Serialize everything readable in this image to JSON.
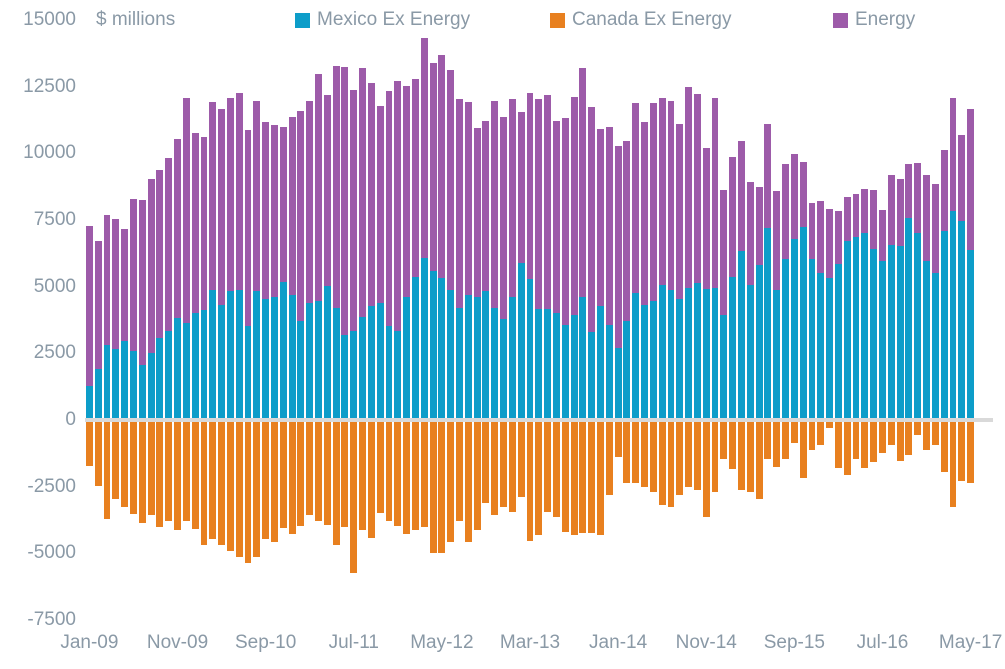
{
  "header": {
    "unit_label": "$ millions"
  },
  "legend": [
    {
      "label": "Mexico Ex Energy",
      "color": "#0d9dc9"
    },
    {
      "label": "Canada Ex Energy",
      "color": "#e8801f"
    },
    {
      "label": "Energy",
      "color": "#9d5ba9"
    }
  ],
  "colors": {
    "mexico": "#0d9dc9",
    "canada": "#e8801f",
    "energy": "#9d5ba9",
    "axis_text": "#8a99a6",
    "zero_line": "#d9d9d9",
    "background": "#ffffff"
  },
  "chart_data": {
    "type": "bar",
    "stacked": true,
    "title": "",
    "ylabel": "$ millions",
    "ylim": [
      -7500,
      15000
    ],
    "grid": false,
    "legend_position": "top",
    "y_ticks": [
      15000,
      12500,
      10000,
      7500,
      5000,
      2500,
      0,
      -2500,
      -5000,
      -7500
    ],
    "x_tick_every": 10,
    "x_tick_labels": [
      "Jan-09",
      "Nov-09",
      "Sep-10",
      "Jul-11",
      "May-12",
      "Mar-13",
      "Jan-14",
      "Nov-14",
      "Sep-15",
      "Jul-16",
      "May-17"
    ],
    "months": [
      "Jan-09",
      "Feb-09",
      "Mar-09",
      "Apr-09",
      "May-09",
      "Jun-09",
      "Jul-09",
      "Aug-09",
      "Sep-09",
      "Oct-09",
      "Nov-09",
      "Dec-09",
      "Jan-10",
      "Feb-10",
      "Mar-10",
      "Apr-10",
      "May-10",
      "Jun-10",
      "Jul-10",
      "Aug-10",
      "Sep-10",
      "Oct-10",
      "Nov-10",
      "Dec-10",
      "Jan-11",
      "Feb-11",
      "Mar-11",
      "Apr-11",
      "May-11",
      "Jun-11",
      "Jul-11",
      "Aug-11",
      "Sep-11",
      "Oct-11",
      "Nov-11",
      "Dec-11",
      "Jan-12",
      "Feb-12",
      "Mar-12",
      "Apr-12",
      "May-12",
      "Jun-12",
      "Jul-12",
      "Aug-12",
      "Sep-12",
      "Oct-12",
      "Nov-12",
      "Dec-12",
      "Jan-13",
      "Feb-13",
      "Mar-13",
      "Apr-13",
      "May-13",
      "Jun-13",
      "Jul-13",
      "Aug-13",
      "Sep-13",
      "Oct-13",
      "Nov-13",
      "Dec-13",
      "Jan-14",
      "Feb-14",
      "Mar-14",
      "Apr-14",
      "May-14",
      "Jun-14",
      "Jul-14",
      "Aug-14",
      "Sep-14",
      "Oct-14",
      "Nov-14",
      "Dec-14",
      "Jan-15",
      "Feb-15",
      "Mar-15",
      "Apr-15",
      "May-15",
      "Jun-15",
      "Jul-15",
      "Aug-15",
      "Sep-15",
      "Oct-15",
      "Nov-15",
      "Dec-15",
      "Jan-16",
      "Feb-16",
      "Mar-16",
      "Apr-16",
      "May-16",
      "Jun-16",
      "Jul-16",
      "Aug-16",
      "Sep-16",
      "Oct-16",
      "Nov-16",
      "Dec-16",
      "Jan-17",
      "Feb-17",
      "Mar-17",
      "Apr-17",
      "May-17"
    ],
    "series": [
      {
        "name": "Mexico Ex Energy",
        "color": "#0d9dc9",
        "values": [
          1200,
          1850,
          2750,
          2600,
          2875,
          2525,
          2000,
          2450,
          3000,
          3275,
          3750,
          3550,
          3950,
          4050,
          4800,
          4250,
          4750,
          4800,
          3450,
          4750,
          4450,
          4550,
          5100,
          4600,
          3625,
          4300,
          4400,
          4950,
          4125,
          3100,
          3275,
          3800,
          4200,
          4300,
          3450,
          3250,
          4525,
          5300,
          6000,
          5500,
          5250,
          4800,
          4125,
          4600,
          4550,
          4750,
          4125,
          3700,
          4550,
          5800,
          5200,
          4100,
          4100,
          3950,
          3500,
          3875,
          4525,
          3225,
          4200,
          3500,
          2625,
          3625,
          4700,
          4225,
          4400,
          5000,
          4800,
          4475,
          4875,
          5050,
          4850,
          4875,
          3875,
          5275,
          6250,
          5000,
          5725,
          7125,
          4800,
          5950,
          6700,
          7150,
          5975,
          5450,
          5250,
          5775,
          6650,
          6775,
          6950,
          6350,
          5900,
          6500,
          6450,
          7500,
          6950,
          5900,
          5450,
          7000,
          7775,
          7400,
          6300
        ]
      },
      {
        "name": "Energy",
        "color": "#9d5ba9",
        "values": [
          6000,
          4800,
          4850,
          4875,
          4200,
          5700,
          6175,
          6500,
          6300,
          6475,
          6700,
          8450,
          6750,
          6500,
          7050,
          7350,
          7250,
          7400,
          7350,
          7150,
          6650,
          6425,
          5800,
          6700,
          7900,
          7575,
          8500,
          7150,
          9075,
          10050,
          9025,
          9325,
          8350,
          7400,
          8825,
          9400,
          7925,
          7400,
          8250,
          7800,
          8350,
          8250,
          7825,
          7250,
          6325,
          6375,
          7775,
          7600,
          7400,
          5675,
          7000,
          7850,
          8000,
          7175,
          7750,
          8175,
          8600,
          8425,
          6650,
          7400,
          7575,
          6750,
          7100,
          6875,
          7400,
          7000,
          7100,
          6550,
          7525,
          7100,
          5275,
          7125,
          4675,
          4525,
          4125,
          3850,
          2925,
          3900,
          3725,
          3575,
          3200,
          2450,
          2075,
          2700,
          2600,
          1975,
          1625,
          1625,
          1650,
          2200,
          1900,
          2625,
          2500,
          2025,
          2600,
          3200,
          3325,
          3050,
          4225,
          3200,
          5300
        ]
      },
      {
        "name": "Canada Ex Energy",
        "color": "#e8801f",
        "values": [
          -1650,
          -2400,
          -3650,
          -2900,
          -3200,
          -3450,
          -3800,
          -3500,
          -3950,
          -3700,
          -4050,
          -3700,
          -4000,
          -4600,
          -4400,
          -4600,
          -4850,
          -5050,
          -5300,
          -5050,
          -4400,
          -4500,
          -3975,
          -4200,
          -3900,
          -3500,
          -3700,
          -3850,
          -4625,
          -3950,
          -5650,
          -4050,
          -4350,
          -3400,
          -3725,
          -3900,
          -4200,
          -4050,
          -3950,
          -4900,
          -4900,
          -4500,
          -3700,
          -4500,
          -4050,
          -3050,
          -3500,
          -3200,
          -3375,
          -2800,
          -4475,
          -4250,
          -3375,
          -3550,
          -4125,
          -4250,
          -4150,
          -4150,
          -4250,
          -2725,
          -1300,
          -2275,
          -2275,
          -2450,
          -2625,
          -3125,
          -3200,
          -2725,
          -2450,
          -2550,
          -3550,
          -2625,
          -1400,
          -1775,
          -2550,
          -2625,
          -2875,
          -1375,
          -1700,
          -1400,
          -775,
          -2100,
          -1050,
          -875,
          -225,
          -1725,
          -1975,
          -1400,
          -1725,
          -1500,
          -1150,
          -875,
          -1450,
          -1250,
          -500,
          -1050,
          -850,
          -1875,
          -3200,
          -2200,
          -2300
        ]
      }
    ]
  }
}
